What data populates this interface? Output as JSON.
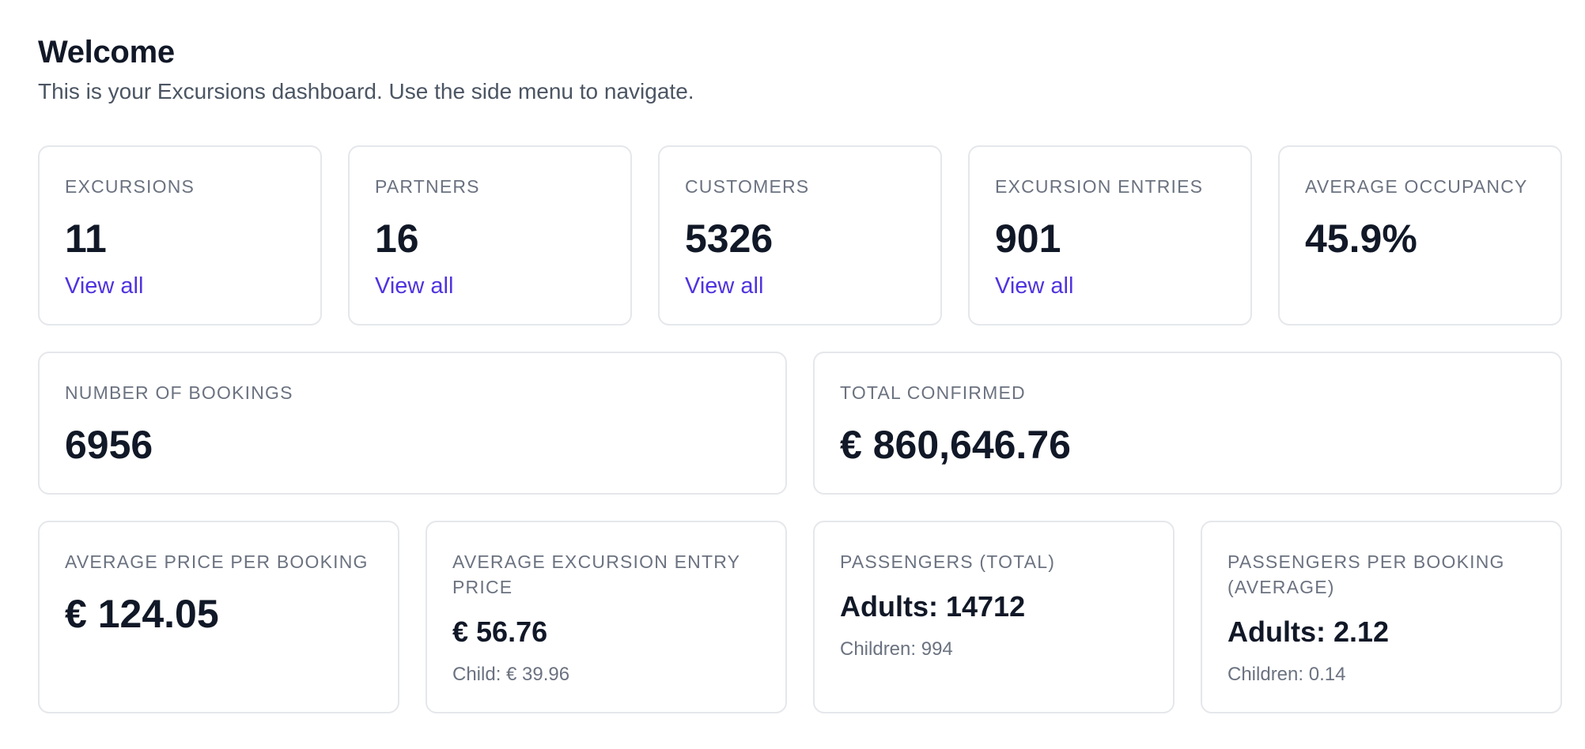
{
  "header": {
    "title": "Welcome",
    "subtitle": "This is your Excursions dashboard. Use the side menu to navigate."
  },
  "stats_row1": [
    {
      "label": "EXCURSIONS",
      "value": "11",
      "link": "View all"
    },
    {
      "label": "PARTNERS",
      "value": "16",
      "link": "View all"
    },
    {
      "label": "CUSTOMERS",
      "value": "5326",
      "link": "View all"
    },
    {
      "label": "EXCURSION ENTRIES",
      "value": "901",
      "link": "View all"
    },
    {
      "label": "AVERAGE OCCUPANCY",
      "value": "45.9%"
    }
  ],
  "stats_row2": [
    {
      "label": "NUMBER OF BOOKINGS",
      "value": "6956"
    },
    {
      "label": "TOTAL CONFIRMED",
      "value": "€ 860,646.76"
    }
  ],
  "stats_row3": [
    {
      "label": "AVERAGE PRICE PER BOOKING",
      "value": "€ 124.05"
    },
    {
      "label": "AVERAGE EXCURSION ENTRY PRICE",
      "value": "€ 56.76",
      "detail": "Child: € 39.96"
    },
    {
      "label": "PASSENGERS (TOTAL)",
      "value": "Adults: 14712",
      "detail": "Children: 994"
    },
    {
      "label": "PASSENGERS PER BOOKING (AVERAGE)",
      "value": "Adults: 2.12",
      "detail": "Children: 0.14"
    }
  ],
  "colors": {
    "link": "#4f33e0",
    "border": "#e5e7eb",
    "label": "#6b7280",
    "value": "#111827"
  }
}
